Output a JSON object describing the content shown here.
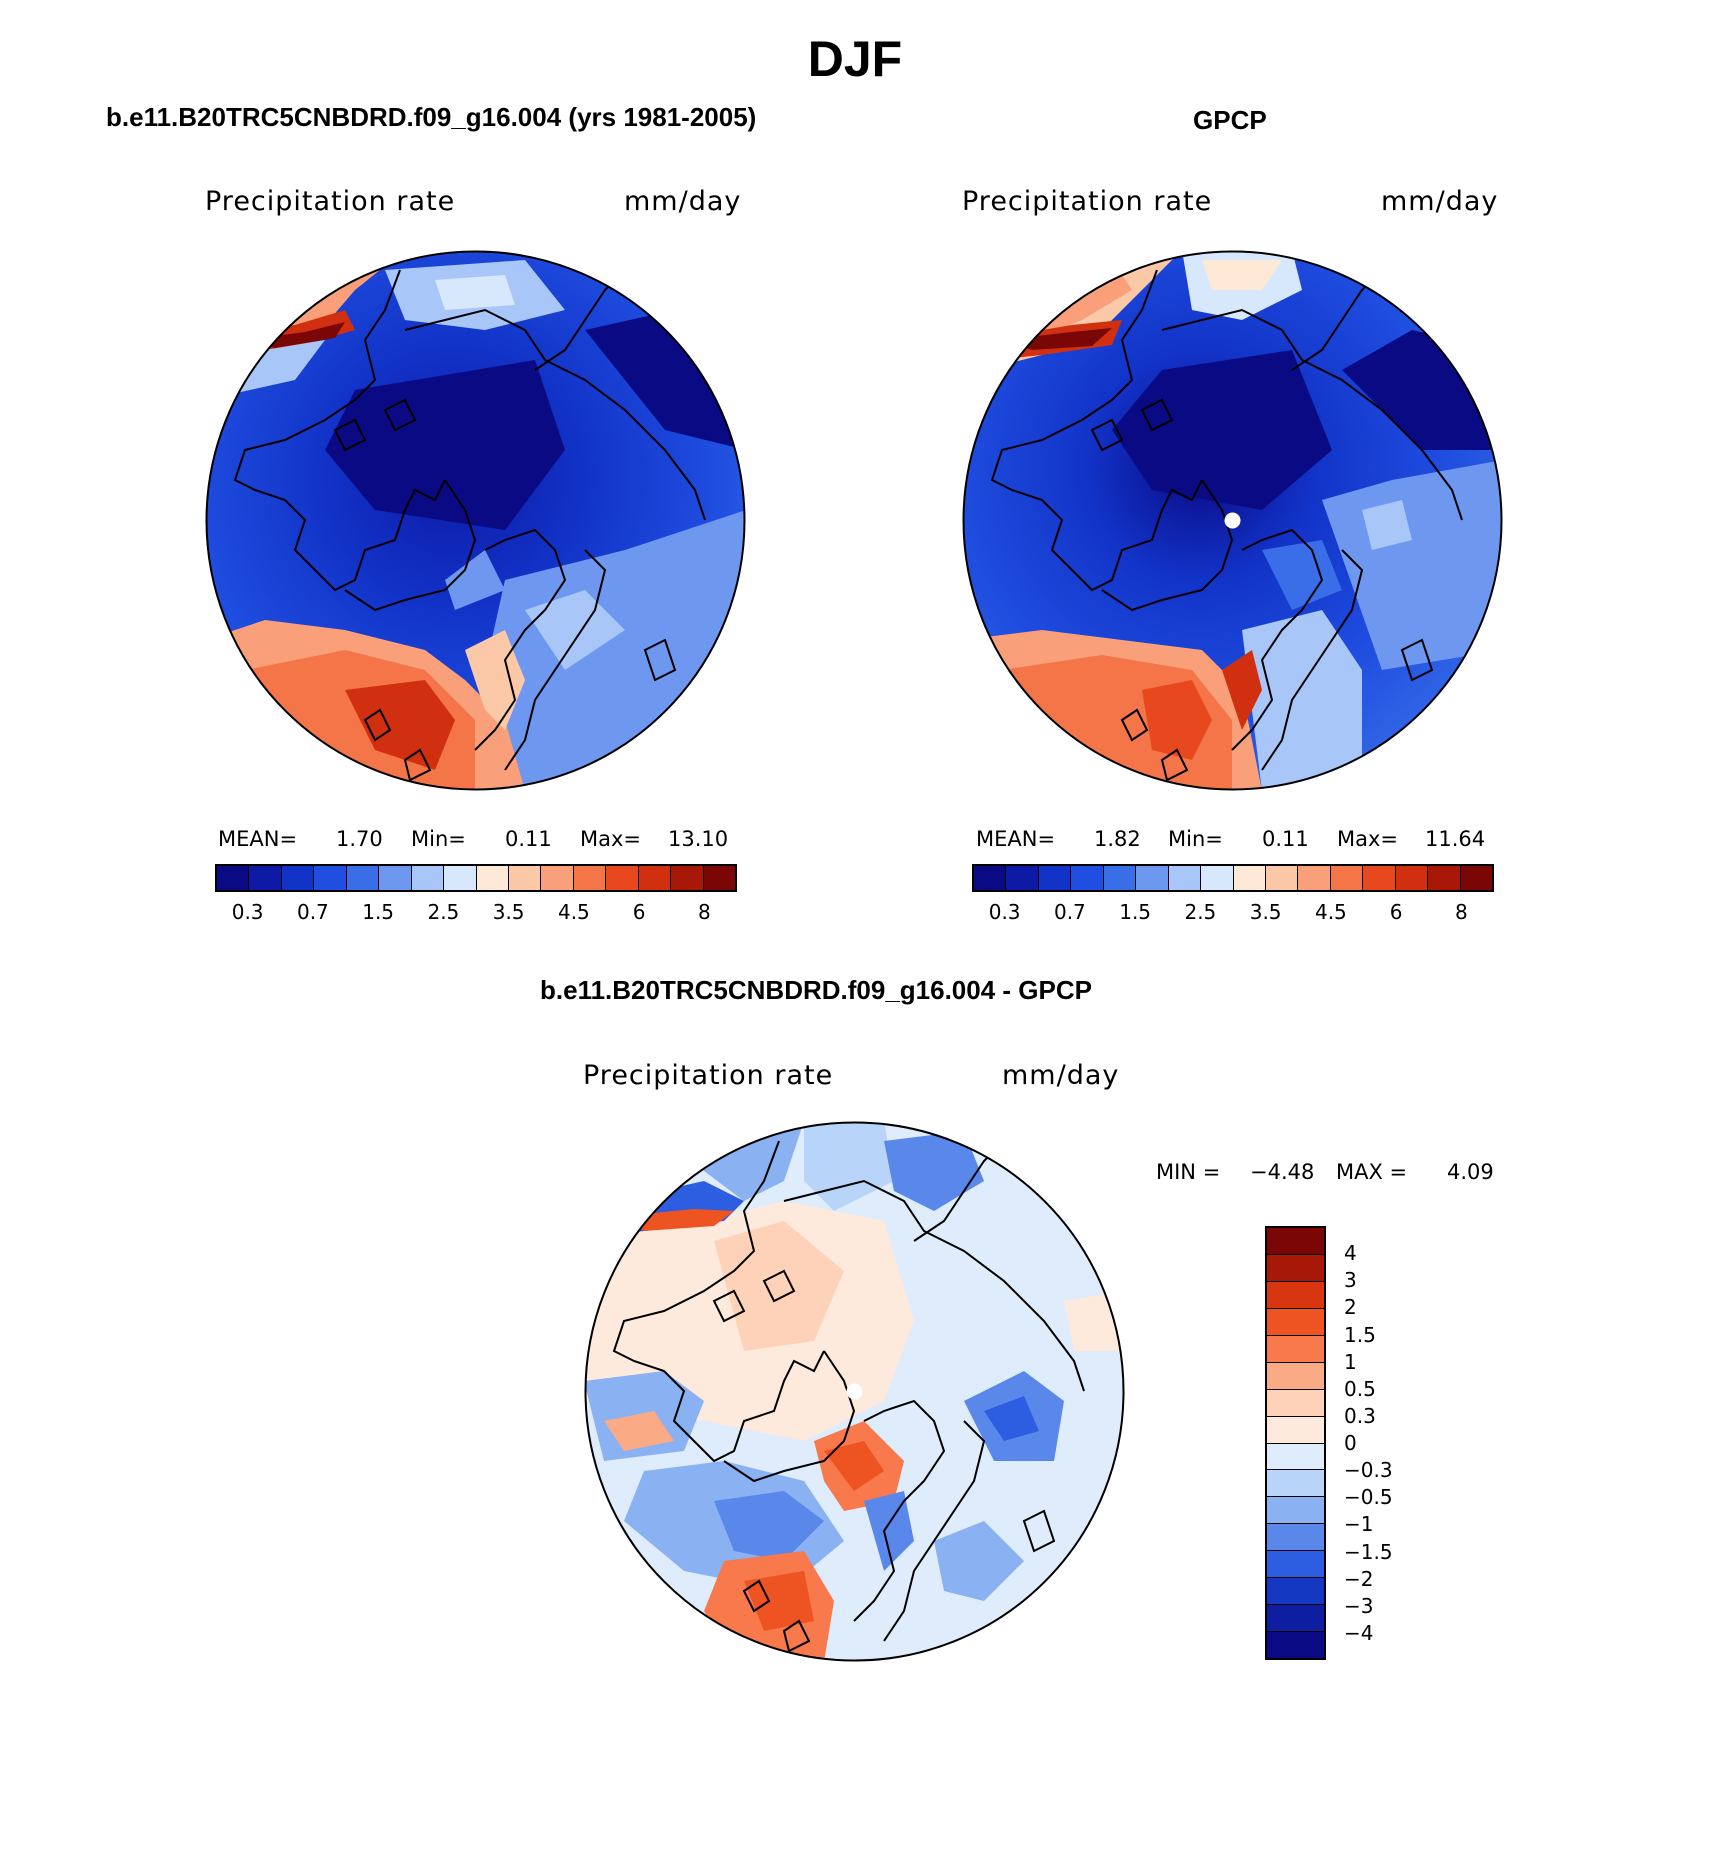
{
  "title": "DJF",
  "panels": [
    {
      "title": "b.e11.B20TRC5CNBDRD.f09_g16.004 (yrs 1981-2005)",
      "variable": "Precipitation rate",
      "units": "mm/day",
      "stats": {
        "mean_label": "MEAN=",
        "mean": "1.70",
        "min_label": "Min=",
        "min": "0.11",
        "max_label": "Max=",
        "max": "13.10"
      }
    },
    {
      "title": "GPCP",
      "variable": "Precipitation rate",
      "units": "mm/day",
      "stats": {
        "mean_label": "MEAN=",
        "mean": "1.82",
        "min_label": "Min=",
        "min": "0.11",
        "max_label": "Max=",
        "max": "11.64"
      }
    },
    {
      "title": "b.e11.B20TRC5CNBDRD.f09_g16.004 - GPCP",
      "variable": "Precipitation rate",
      "units": "mm/day",
      "stats": {
        "min_label": "MIN =",
        "min": "−4.48",
        "max_label": "MAX =",
        "max": "4.09"
      }
    }
  ],
  "abs_colorbar": {
    "colors": [
      "#0a0a84",
      "#0d1aa6",
      "#1233c8",
      "#1f4ee0",
      "#3a6ee8",
      "#6e98f0",
      "#a8c6f8",
      "#d8e8fc",
      "#fde9d6",
      "#fcc9a8",
      "#f9a07a",
      "#f47648",
      "#e8481e",
      "#d03010",
      "#a81808",
      "#7a0606"
    ],
    "labels": [
      "0.3",
      "0.7",
      "1.5",
      "2.5",
      "3.5",
      "4.5",
      "6",
      "8"
    ]
  },
  "diff_colorbar": {
    "colors": [
      "#7a0606",
      "#a81808",
      "#d8360e",
      "#ee5422",
      "#f7794c",
      "#fbaa86",
      "#fdd2b8",
      "#fdeadc",
      "#dfecfc",
      "#b8d4f8",
      "#8ab2f2",
      "#5a88ea",
      "#2d5ee2",
      "#1538c2",
      "#0d1fa0",
      "#0a0a84"
    ],
    "labels": [
      "4",
      "3",
      "2",
      "1.5",
      "1",
      "0.5",
      "0.3",
      "0",
      "−0.3",
      "−0.5",
      "−1",
      "−1.5",
      "−2",
      "−3",
      "−4"
    ]
  }
}
